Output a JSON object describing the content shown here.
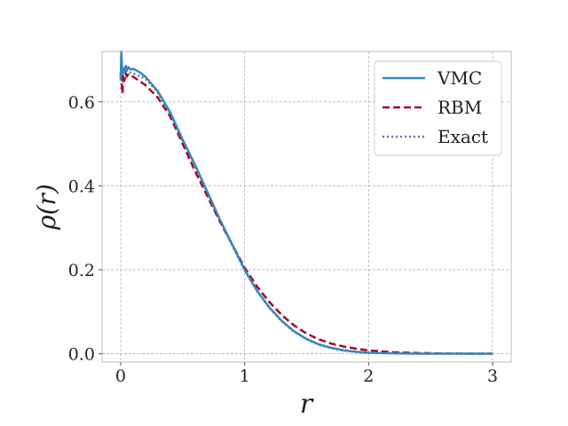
{
  "chart_data": {
    "type": "line",
    "xlabel": "r",
    "ylabel": "ρ(r)",
    "xlim": [
      -0.15,
      3.15
    ],
    "ylim": [
      -0.02,
      0.72
    ],
    "x_ticks": [
      0,
      1,
      2,
      3
    ],
    "x_tick_labels": [
      "0",
      "1",
      "2",
      "3"
    ],
    "y_ticks": [
      0.0,
      0.2,
      0.4,
      0.6
    ],
    "y_tick_labels": [
      "0.0",
      "0.2",
      "0.4",
      "0.6"
    ],
    "grid": true,
    "legend_position": "upper-right",
    "series": [
      {
        "name": "VMC",
        "color": "#348abd",
        "style": "solid",
        "x": [
          0,
          0.005,
          0.01,
          0.015,
          0.02,
          0.03,
          0.04,
          0.05,
          0.06,
          0.08,
          0.1,
          0.15,
          0.2,
          0.3,
          0.4,
          0.5,
          0.6,
          0.7,
          0.8,
          0.9,
          1.0,
          1.1,
          1.2,
          1.3,
          1.4,
          1.5,
          1.6,
          1.7,
          1.8,
          1.9,
          2.0,
          2.2,
          2.4,
          2.6,
          2.8,
          3.0
        ],
        "y": [
          0.65,
          0.72,
          0.69,
          0.665,
          0.68,
          0.67,
          0.686,
          0.674,
          0.683,
          0.677,
          0.679,
          0.671,
          0.66,
          0.625,
          0.575,
          0.51,
          0.45,
          0.385,
          0.32,
          0.26,
          0.2,
          0.15,
          0.11,
          0.078,
          0.053,
          0.035,
          0.022,
          0.014,
          0.008,
          0.0045,
          0.0025,
          0.0008,
          0.0002,
          5e-05,
          0.0,
          0.0
        ]
      },
      {
        "name": "RBM",
        "color": "#a60628",
        "style": "dashed",
        "x": [
          0,
          0.005,
          0.01,
          0.015,
          0.02,
          0.03,
          0.04,
          0.05,
          0.06,
          0.08,
          0.1,
          0.15,
          0.2,
          0.3,
          0.4,
          0.5,
          0.6,
          0.7,
          0.8,
          0.9,
          1.0,
          1.1,
          1.2,
          1.3,
          1.4,
          1.5,
          1.6,
          1.7,
          1.8,
          1.9,
          2.0,
          2.2,
          2.4,
          2.6,
          2.8,
          3.0
        ],
        "y": [
          0.66,
          0.69,
          0.635,
          0.62,
          0.665,
          0.65,
          0.668,
          0.66,
          0.665,
          0.661,
          0.66,
          0.65,
          0.64,
          0.61,
          0.565,
          0.5,
          0.435,
          0.375,
          0.315,
          0.26,
          0.205,
          0.16,
          0.123,
          0.092,
          0.067,
          0.048,
          0.034,
          0.024,
          0.017,
          0.012,
          0.008,
          0.0035,
          0.0015,
          0.0006,
          0.0002,
          0.0
        ]
      },
      {
        "name": "Exact",
        "color": "#7a68a6",
        "style": "dotted",
        "x": [
          0,
          0.1,
          0.2,
          0.3,
          0.4,
          0.5,
          0.6,
          0.7,
          0.8,
          0.9,
          1.0,
          1.1,
          1.2,
          1.3,
          1.4,
          1.5,
          1.6,
          1.7,
          1.8,
          1.9,
          2.0,
          2.2,
          2.4,
          2.6,
          2.8,
          3.0
        ],
        "y": [
          0.675,
          0.668,
          0.655,
          0.622,
          0.572,
          0.507,
          0.447,
          0.382,
          0.318,
          0.258,
          0.199,
          0.149,
          0.109,
          0.077,
          0.052,
          0.034,
          0.021,
          0.013,
          0.0075,
          0.0042,
          0.0023,
          0.0007,
          0.0002,
          5e-05,
          0.0,
          0.0
        ]
      }
    ]
  }
}
